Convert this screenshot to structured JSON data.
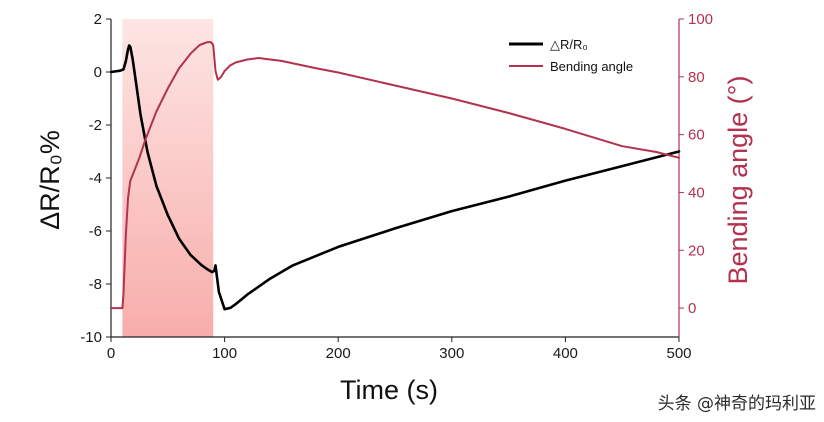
{
  "chart_data": {
    "type": "line",
    "title": "",
    "xlabel": "Time (s)",
    "ylabel_left": "ΔR/R₀%",
    "ylabel_right": "Bending angle (°)",
    "xlim": [
      0,
      500
    ],
    "ylim_left": [
      -10,
      2
    ],
    "ylim_right": [
      -10,
      100
    ],
    "xticks": [
      0,
      100,
      200,
      300,
      400,
      500
    ],
    "yticks_left": [
      2,
      0,
      -2,
      -4,
      -6,
      -8,
      -10
    ],
    "yticks_right": [
      100,
      80,
      60,
      40,
      20,
      0
    ],
    "shaded_region": {
      "x_start": 10,
      "x_end": 90,
      "color": "#f7b5b5"
    },
    "series": [
      {
        "name": "△R/R₀",
        "axis": "left",
        "color": "#000000",
        "x": [
          0,
          8,
          11,
          13,
          15,
          16,
          17,
          19,
          22,
          26,
          32,
          40,
          50,
          60,
          70,
          80,
          85,
          89,
          91,
          92,
          95,
          100,
          105,
          110,
          120,
          140,
          160,
          200,
          250,
          300,
          350,
          400,
          450,
          500
        ],
        "y": [
          0.0,
          0.05,
          0.1,
          0.4,
          0.85,
          1.0,
          0.95,
          0.5,
          -0.4,
          -1.6,
          -3.0,
          -4.3,
          -5.4,
          -6.3,
          -6.9,
          -7.3,
          -7.45,
          -7.55,
          -7.5,
          -7.3,
          -8.3,
          -8.95,
          -8.9,
          -8.75,
          -8.4,
          -7.8,
          -7.3,
          -6.6,
          -5.9,
          -5.25,
          -4.7,
          -4.1,
          -3.55,
          -3.0
        ]
      },
      {
        "name": "Bending angle",
        "axis": "right",
        "color": "#b2324f",
        "x": [
          0,
          10,
          11,
          13,
          15,
          17,
          20,
          25,
          30,
          40,
          50,
          60,
          70,
          78,
          85,
          88,
          90,
          92,
          94,
          97,
          100,
          105,
          110,
          120,
          130,
          140,
          150,
          180,
          200,
          250,
          300,
          350,
          400,
          450,
          480,
          500
        ],
        "y": [
          0,
          0,
          5,
          25,
          38,
          44,
          47,
          52,
          58,
          68,
          76,
          83,
          88,
          91,
          92,
          92,
          91,
          82,
          79,
          80,
          82,
          84,
          85,
          86,
          86.5,
          86,
          85.5,
          83,
          81.5,
          77,
          72.5,
          67.5,
          62,
          56,
          54,
          52
        ]
      }
    ]
  },
  "watermark": "头条 @神奇的玛利亚"
}
